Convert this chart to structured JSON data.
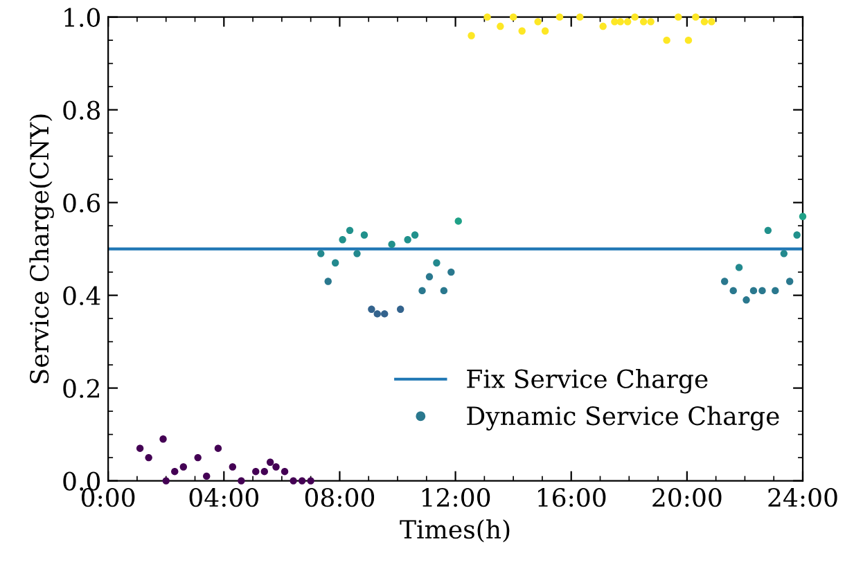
{
  "chart_data": {
    "type": "scatter",
    "xlabel": "Times(h)",
    "ylabel": "Service Charge(CNY)",
    "xlim": [
      0,
      24
    ],
    "ylim": [
      0,
      1.0
    ],
    "xticks": [
      {
        "value": 0,
        "label": "0:00"
      },
      {
        "value": 4,
        "label": "04:00"
      },
      {
        "value": 8,
        "label": "08:00"
      },
      {
        "value": 12,
        "label": "12:00"
      },
      {
        "value": 16,
        "label": "16:00"
      },
      {
        "value": 20,
        "label": "20:00"
      },
      {
        "value": 24,
        "label": "24:00"
      }
    ],
    "yticks": [
      {
        "value": 0,
        "label": "0.0"
      },
      {
        "value": 0.2,
        "label": "0.2"
      },
      {
        "value": 0.4,
        "label": "0.4"
      },
      {
        "value": 0.6,
        "label": "0.6"
      },
      {
        "value": 0.8,
        "label": "0.8"
      },
      {
        "value": 1.0,
        "label": "1.0"
      }
    ],
    "legend": "bottom right",
    "grid": false,
    "series": [
      {
        "name": "Fix Service Charge",
        "type": "line",
        "color": "#1f77b4",
        "line_style": "solid",
        "marker": "none",
        "x": [
          0,
          24
        ],
        "values": [
          0.5,
          0.5
        ]
      },
      {
        "name": "Dynamic Service Charge",
        "marker": "circle",
        "color": "#2a788e",
        "x": [
          1.1,
          1.4,
          1.9,
          2.0,
          2.3,
          2.6,
          3.1,
          3.4,
          3.8,
          4.3,
          4.6,
          5.1,
          5.4,
          5.6,
          5.8,
          6.1,
          6.4,
          6.7,
          7.0,
          7.35,
          7.6,
          7.85,
          8.1,
          8.35,
          8.6,
          8.85,
          9.1,
          9.3,
          9.55,
          9.8,
          10.1,
          10.35,
          10.6,
          10.85,
          11.1,
          11.35,
          11.6,
          11.85,
          12.1,
          12.55,
          13.1,
          13.55,
          14.0,
          14.3,
          14.85,
          15.1,
          15.6,
          16.3,
          17.1,
          17.5,
          17.7,
          17.95,
          18.2,
          18.5,
          18.75,
          19.3,
          19.7,
          20.05,
          20.3,
          20.6,
          20.85,
          21.3,
          21.6,
          21.8,
          22.05,
          22.3,
          22.6,
          22.8,
          23.05,
          23.35,
          23.55,
          23.8,
          24.0
        ],
        "values": [
          0.07,
          0.05,
          0.09,
          0.0,
          0.02,
          0.03,
          0.05,
          0.01,
          0.07,
          0.03,
          0.0,
          0.02,
          0.02,
          0.04,
          0.03,
          0.02,
          0.0,
          0.0,
          0.0,
          0.49,
          0.43,
          0.47,
          0.52,
          0.54,
          0.49,
          0.53,
          0.37,
          0.36,
          0.36,
          0.51,
          0.37,
          0.52,
          0.53,
          0.41,
          0.44,
          0.47,
          0.41,
          0.45,
          0.56,
          0.96,
          1.0,
          0.98,
          1.0,
          0.97,
          0.99,
          0.97,
          1.0,
          1.0,
          0.98,
          0.99,
          0.99,
          0.99,
          1.0,
          0.99,
          0.99,
          0.95,
          1.0,
          0.95,
          1.0,
          0.99,
          0.99,
          0.43,
          0.41,
          0.46,
          0.39,
          0.41,
          0.41,
          0.54,
          0.41,
          0.49,
          0.43,
          0.53,
          0.57
        ],
        "colors": [
          "#440154",
          "#440154",
          "#440154",
          "#440154",
          "#440154",
          "#440154",
          "#440154",
          "#440154",
          "#440154",
          "#440154",
          "#440154",
          "#440154",
          "#440154",
          "#440154",
          "#440154",
          "#440154",
          "#440154",
          "#440154",
          "#440154",
          "#23898e",
          "#2a788e",
          "#23898e",
          "#21918c",
          "#21918c",
          "#23898e",
          "#21918c",
          "#33638d",
          "#33638d",
          "#33638d",
          "#21918c",
          "#33638d",
          "#21918c",
          "#21918c",
          "#2a788e",
          "#2a788e",
          "#23898e",
          "#2a788e",
          "#2a788e",
          "#1fa187",
          "#fde725",
          "#fde725",
          "#fde725",
          "#fde725",
          "#fde725",
          "#fde725",
          "#fde725",
          "#fde725",
          "#fde725",
          "#fde725",
          "#fde725",
          "#fde725",
          "#fde725",
          "#fde725",
          "#fde725",
          "#fde725",
          "#fde725",
          "#fde725",
          "#fde725",
          "#fde725",
          "#fde725",
          "#fde725",
          "#2a788e",
          "#2a788e",
          "#23898e",
          "#2a788e",
          "#2a788e",
          "#2a788e",
          "#21918c",
          "#2a788e",
          "#23898e",
          "#2a788e",
          "#21918c",
          "#1fa187"
        ]
      }
    ]
  }
}
